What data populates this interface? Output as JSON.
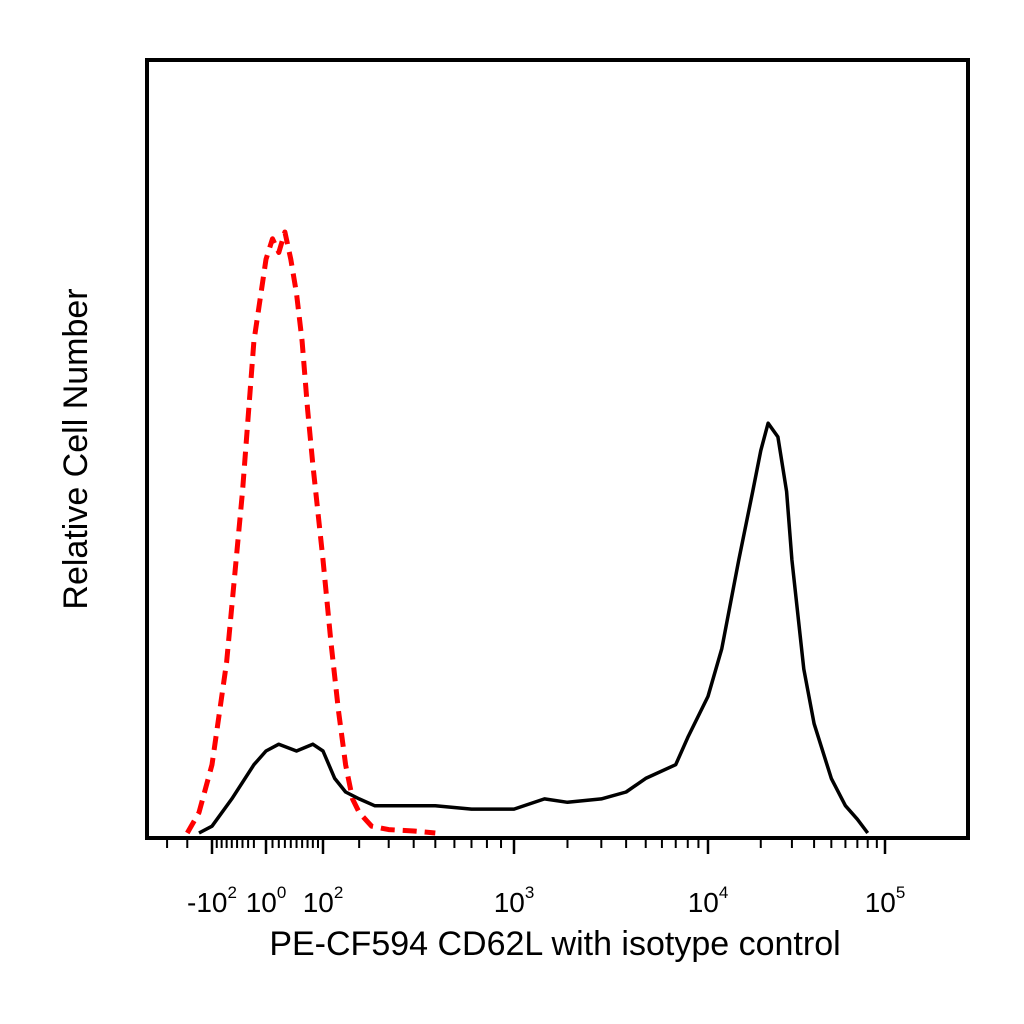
{
  "chart_data": {
    "type": "line",
    "title": "",
    "xlabel": "PE-CF594 CD62L with isotype control",
    "ylabel": "Relative Cell Number",
    "x_scale": "biexponential",
    "xlim": [
      -400,
      250000
    ],
    "ylim": [
      0,
      100
    ],
    "x_ticks": [
      {
        "value": -100,
        "base": "-10",
        "exp": "2"
      },
      {
        "value": 0,
        "base": "10",
        "exp": "0"
      },
      {
        "value": 100,
        "base": "10",
        "exp": "2"
      },
      {
        "value": 1000,
        "base": "10",
        "exp": "3"
      },
      {
        "value": 10000,
        "base": "10",
        "exp": "4"
      },
      {
        "value": 100000,
        "base": "10",
        "exp": "5"
      }
    ],
    "grid": false,
    "legend": "none",
    "series": [
      {
        "color": "#ff0000",
        "dash": "dashed",
        "x": [
          -200,
          -150,
          -100,
          -70,
          -40,
          -20,
          0,
          10,
          20,
          30,
          40,
          50,
          60,
          70,
          80,
          100,
          120,
          140,
          160,
          180,
          200,
          240,
          300,
          400,
          500
        ],
        "y": [
          0,
          3,
          10,
          25,
          50,
          72,
          84,
          87,
          85,
          88,
          84,
          79,
          72,
          62,
          54,
          40,
          28,
          18,
          10,
          5,
          3,
          1,
          0.5,
          0.3,
          0
        ],
        "y_units": "percent of the 0–100 axis"
      },
      {
        "color": "#000000",
        "dash": "solid",
        "x": [
          -150,
          -100,
          -60,
          -20,
          0,
          20,
          50,
          80,
          100,
          130,
          160,
          200,
          250,
          300,
          400,
          500,
          700,
          1000,
          1500,
          2000,
          3000,
          4000,
          5000,
          7000,
          8000,
          10000,
          12000,
          15000,
          18000,
          20000,
          22000,
          25000,
          28000,
          30000,
          35000,
          40000,
          50000,
          60000,
          70000,
          80000
        ],
        "y": [
          0,
          1,
          5,
          10,
          12,
          13,
          12,
          13,
          12,
          8,
          6,
          5,
          4,
          4,
          4,
          4,
          3.5,
          3.5,
          5,
          4.5,
          5,
          6,
          8,
          10,
          14,
          20,
          27,
          40,
          50,
          56,
          60,
          58,
          50,
          40,
          24,
          16,
          8,
          4,
          2,
          0
        ],
        "y_units": "percent of the 0–100 axis"
      }
    ]
  }
}
